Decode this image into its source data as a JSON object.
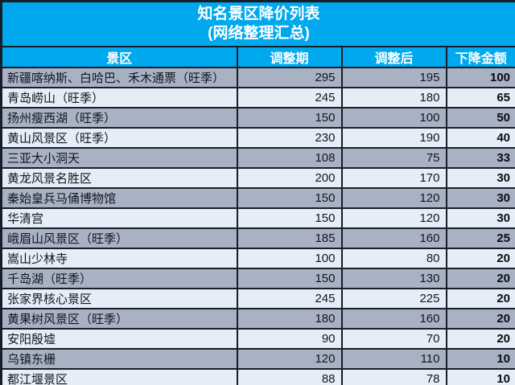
{
  "colors": {
    "header_bg": "#00A9EE",
    "border": "#161E2A",
    "row_odd_bg": "#A8B2C3",
    "row_even_bg": "#E6EDF6",
    "header_text": "#FFFFFF",
    "cell_text": "#12161F"
  },
  "chart_data": {
    "type": "table",
    "title": "知名景区降价列表",
    "subtitle": "(网络整理汇总)",
    "columns": [
      "景区",
      "调整期",
      "调整后",
      "下降金额"
    ],
    "rows": [
      [
        "新疆喀纳斯、白哈巴、禾木通票（旺季）",
        295,
        195,
        100
      ],
      [
        "青岛崂山（旺季）",
        245,
        180,
        65
      ],
      [
        "扬州瘦西湖（旺季）",
        150,
        100,
        50
      ],
      [
        "黄山风景区（旺季）",
        230,
        190,
        40
      ],
      [
        "三亚大小洞天",
        108,
        75,
        33
      ],
      [
        "黄龙风景名胜区",
        200,
        170,
        30
      ],
      [
        "秦始皇兵马俑博物馆",
        150,
        120,
        30
      ],
      [
        "华清宫",
        150,
        120,
        30
      ],
      [
        "峨眉山风景区（旺季）",
        185,
        160,
        25
      ],
      [
        "嵩山少林寺",
        100,
        80,
        20
      ],
      [
        "千岛湖（旺季）",
        150,
        130,
        20
      ],
      [
        "张家界核心景区",
        245,
        225,
        20
      ],
      [
        "黄果树风景区（旺季）",
        180,
        160,
        20
      ],
      [
        "安阳殷墟",
        90,
        70,
        20
      ],
      [
        "乌镇东栅",
        120,
        110,
        10
      ],
      [
        "都江堰景区",
        88,
        78,
        10
      ]
    ]
  }
}
